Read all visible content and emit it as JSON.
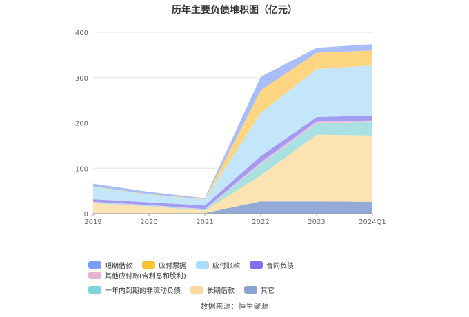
{
  "chart_data": {
    "type": "area",
    "stacked": true,
    "title": "历年主要负债堆积图（亿元）",
    "categories": [
      "2019",
      "2020",
      "2021",
      "2022",
      "2023",
      "2024Q1"
    ],
    "yticks": [
      "0",
      "100",
      "200",
      "300",
      "400"
    ],
    "ylim": [
      0,
      400
    ],
    "grid": true,
    "legend_position": "bottom",
    "series": [
      {
        "name": "其它",
        "color": "#93a9d6",
        "values": [
          1,
          1,
          1,
          27,
          27,
          26
        ]
      },
      {
        "name": "长期借款",
        "color": "#fde2b2",
        "values": [
          22,
          15,
          6,
          57,
          147,
          146
        ]
      },
      {
        "name": "一年内到期的非流动负债",
        "color": "#a9e1e3",
        "values": [
          2,
          2,
          2,
          25,
          25,
          31
        ]
      },
      {
        "name": "其他应付款(含利息和股利)",
        "color": "#ecc6df",
        "values": [
          1,
          1,
          1,
          4,
          4,
          3
        ]
      },
      {
        "name": "合同负债",
        "color": "#a39af2",
        "values": [
          6,
          6,
          8,
          14,
          10,
          10
        ]
      },
      {
        "name": "应付账款",
        "color": "#c4e6fb",
        "values": [
          27,
          17,
          13,
          95,
          106,
          111
        ]
      },
      {
        "name": "应付票据",
        "color": "#fed681",
        "values": [
          1,
          1,
          1,
          50,
          36,
          33
        ]
      },
      {
        "name": "短期借款",
        "color": "#a8bdfa",
        "values": [
          6,
          5,
          2,
          30,
          11,
          14
        ]
      }
    ]
  },
  "legend": {
    "rows": [
      [
        {
          "label": "短期借款",
          "color": "#7d9ef8"
        },
        {
          "label": "应付票据",
          "color": "#fcc133"
        },
        {
          "label": "应付账款",
          "color": "#a9ddfb"
        },
        {
          "label": "合同负债",
          "color": "#7a73ef"
        },
        {
          "label": "其他应付款(含利息和股利)",
          "color": "#e8b4d6"
        }
      ],
      [
        {
          "label": "一年内到期的非流动负债",
          "color": "#7fd3d6"
        },
        {
          "label": "长期借款",
          "color": "#fdd8a0"
        },
        {
          "label": "其它",
          "color": "#8aa4d6"
        }
      ]
    ]
  },
  "source": "数据来源：恒生聚源"
}
